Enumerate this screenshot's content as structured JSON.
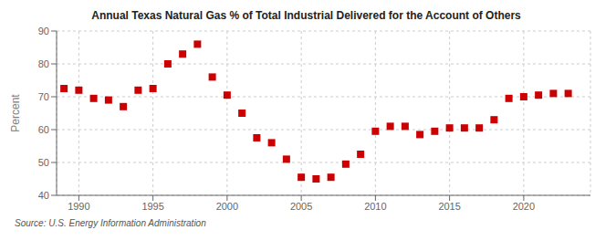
{
  "chart_data": {
    "type": "scatter",
    "title": "Annual Texas Natural Gas % of Total Industrial Delivered for the Account of Others",
    "ylabel": "Percent",
    "annotations": [
      "Source: U.S. Energy Information Administration"
    ],
    "x": [
      1989,
      1990,
      1991,
      1992,
      1993,
      1994,
      1995,
      1996,
      1997,
      1998,
      1999,
      2000,
      2001,
      2002,
      2003,
      2004,
      2005,
      2006,
      2007,
      2008,
      2009,
      2010,
      2011,
      2012,
      2013,
      2014,
      2015,
      2016,
      2017,
      2018,
      2019,
      2020,
      2021,
      2022,
      2023
    ],
    "values": [
      72.5,
      72.0,
      69.5,
      69.0,
      67.0,
      72.0,
      72.5,
      80.0,
      83.0,
      86.0,
      76.0,
      70.5,
      65.0,
      57.5,
      56.0,
      51.0,
      45.5,
      45.0,
      45.5,
      49.5,
      52.5,
      59.5,
      61.0,
      61.0,
      58.5,
      59.5,
      60.5,
      60.5,
      60.5,
      63.0,
      69.5,
      70.0,
      70.5,
      71.0,
      71.0
    ],
    "xlim": [
      1988.5,
      2024.5
    ],
    "ylim": [
      40,
      90
    ],
    "xticks": [
      1990,
      1995,
      2000,
      2005,
      2010,
      2015,
      2020
    ],
    "yticks": [
      40,
      50,
      60,
      70,
      80,
      90
    ],
    "color": "#cc0000",
    "marker": "square",
    "grid": true
  }
}
